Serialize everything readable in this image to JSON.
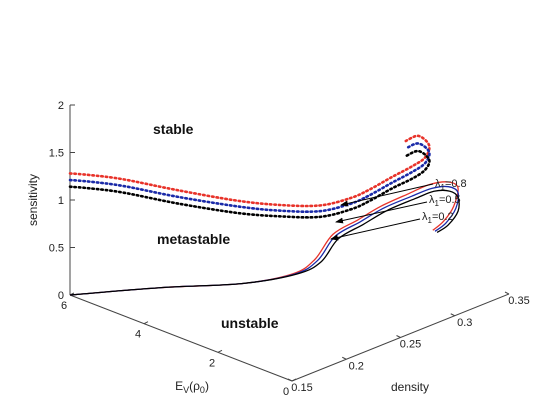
{
  "chart_data": {
    "type": "line",
    "title": "",
    "zlabel": "sensitivity",
    "ylabel_text": "E",
    "ylabel_sub": "V",
    "ylabel_rho": "(ρ",
    "ylabel_rho_sub": "0",
    "ylabel_close": ")",
    "xlabel": "density",
    "zlim": [
      0,
      2
    ],
    "xlim": [
      0.15,
      0.35
    ],
    "ylim": [
      0,
      6
    ],
    "z_ticks": [
      "0",
      "0.5",
      "1",
      "1.5",
      "2"
    ],
    "x_ticks": [
      "0.15",
      "0.2",
      "0.25",
      "0.3",
      "0.35"
    ],
    "y_ticks": [
      "0",
      "2",
      "4",
      "6"
    ],
    "regions": [
      "stable",
      "metastable",
      "unstable"
    ],
    "annotations": [
      {
        "sym": "λ",
        "sub": "1",
        "val": "=0.8"
      },
      {
        "sym": "λ",
        "sub": "1",
        "val": "=0.5"
      },
      {
        "sym": "λ",
        "sub": "1",
        "val": "=0.2"
      }
    ],
    "grid": false,
    "colors": {
      "red": "#e8332a",
      "blue": "#1a2aa8",
      "black": "#000000",
      "axis": "#444444"
    },
    "series": [
      {
        "lambda": 0.8,
        "color": "red",
        "solid": [
          [
            0.15,
            6.0,
            0.0
          ],
          [
            0.2,
            5.0,
            0.0
          ],
          [
            0.24,
            4.0,
            0.01
          ],
          [
            0.27,
            3.5,
            0.05
          ],
          [
            0.28,
            3.2,
            0.2
          ],
          [
            0.29,
            3.0,
            0.45
          ],
          [
            0.296,
            2.5,
            0.65
          ],
          [
            0.3,
            2.0,
            0.85
          ],
          [
            0.305,
            1.4,
            1.05
          ],
          [
            0.311,
            1.0,
            1.18
          ],
          [
            0.318,
            0.7,
            1.22
          ],
          [
            0.32,
            0.5,
            1.18
          ],
          [
            0.311,
            0.35,
            1.05
          ],
          [
            0.3,
            0.3,
            0.95
          ],
          [
            0.29,
            0.3,
            0.9
          ]
        ],
        "dotted": [
          [
            0.15,
            6.0,
            1.28
          ],
          [
            0.155,
            5.6,
            1.3
          ],
          [
            0.165,
            5.0,
            1.3
          ],
          [
            0.18,
            4.0,
            1.27
          ],
          [
            0.2,
            3.0,
            1.22
          ],
          [
            0.215,
            2.3,
            1.21
          ],
          [
            0.23,
            1.6,
            1.24
          ],
          [
            0.245,
            1.2,
            1.31
          ],
          [
            0.255,
            1.0,
            1.38
          ],
          [
            0.27,
            0.8,
            1.48
          ],
          [
            0.282,
            0.6,
            1.57
          ],
          [
            0.29,
            0.5,
            1.64
          ],
          [
            0.29,
            0.4,
            1.78
          ],
          [
            0.275,
            0.25,
            1.97
          ],
          [
            0.26,
            0.15,
            2.0
          ]
        ]
      },
      {
        "lambda": 0.5,
        "color": "blue",
        "solid": [
          [
            0.15,
            6.0,
            0.0
          ],
          [
            0.2,
            5.0,
            0.0
          ],
          [
            0.24,
            4.0,
            0.01
          ],
          [
            0.272,
            3.5,
            0.04
          ],
          [
            0.283,
            3.2,
            0.18
          ],
          [
            0.292,
            3.0,
            0.42
          ],
          [
            0.298,
            2.5,
            0.62
          ],
          [
            0.303,
            2.0,
            0.82
          ],
          [
            0.308,
            1.4,
            1.01
          ],
          [
            0.313,
            1.0,
            1.13
          ],
          [
            0.318,
            0.7,
            1.17
          ],
          [
            0.32,
            0.5,
            1.13
          ],
          [
            0.313,
            0.35,
            1.02
          ],
          [
            0.302,
            0.3,
            0.92
          ],
          [
            0.292,
            0.3,
            0.88
          ]
        ],
        "dotted": [
          [
            0.15,
            6.0,
            1.21
          ],
          [
            0.155,
            5.6,
            1.23
          ],
          [
            0.165,
            5.0,
            1.23
          ],
          [
            0.18,
            4.0,
            1.2
          ],
          [
            0.2,
            3.0,
            1.16
          ],
          [
            0.215,
            2.3,
            1.15
          ],
          [
            0.23,
            1.6,
            1.18
          ],
          [
            0.245,
            1.2,
            1.25
          ],
          [
            0.255,
            1.0,
            1.32
          ],
          [
            0.27,
            0.8,
            1.42
          ],
          [
            0.282,
            0.6,
            1.51
          ],
          [
            0.29,
            0.5,
            1.58
          ],
          [
            0.29,
            0.4,
            1.71
          ],
          [
            0.275,
            0.25,
            1.89
          ],
          [
            0.26,
            0.15,
            1.92
          ]
        ]
      },
      {
        "lambda": 0.2,
        "color": "black",
        "solid": [
          [
            0.15,
            6.0,
            0.0
          ],
          [
            0.2,
            5.0,
            0.0
          ],
          [
            0.24,
            4.0,
            0.01
          ],
          [
            0.274,
            3.5,
            0.03
          ],
          [
            0.286,
            3.2,
            0.15
          ],
          [
            0.295,
            3.0,
            0.38
          ],
          [
            0.301,
            2.5,
            0.58
          ],
          [
            0.306,
            2.0,
            0.78
          ],
          [
            0.311,
            1.4,
            0.97
          ],
          [
            0.315,
            1.0,
            1.09
          ],
          [
            0.319,
            0.7,
            1.12
          ],
          [
            0.32,
            0.5,
            1.08
          ],
          [
            0.315,
            0.35,
            0.98
          ],
          [
            0.304,
            0.3,
            0.89
          ],
          [
            0.294,
            0.3,
            0.86
          ]
        ],
        "dotted": [
          [
            0.15,
            6.0,
            1.14
          ],
          [
            0.155,
            5.6,
            1.16
          ],
          [
            0.165,
            5.0,
            1.16
          ],
          [
            0.18,
            4.0,
            1.13
          ],
          [
            0.2,
            3.0,
            1.09
          ],
          [
            0.215,
            2.3,
            1.09
          ],
          [
            0.23,
            1.6,
            1.12
          ],
          [
            0.245,
            1.2,
            1.19
          ],
          [
            0.255,
            1.0,
            1.26
          ],
          [
            0.27,
            0.8,
            1.36
          ],
          [
            0.282,
            0.6,
            1.44
          ],
          [
            0.29,
            0.5,
            1.51
          ],
          [
            0.29,
            0.4,
            1.63
          ],
          [
            0.275,
            0.25,
            1.81
          ],
          [
            0.26,
            0.15,
            1.84
          ]
        ]
      }
    ]
  }
}
